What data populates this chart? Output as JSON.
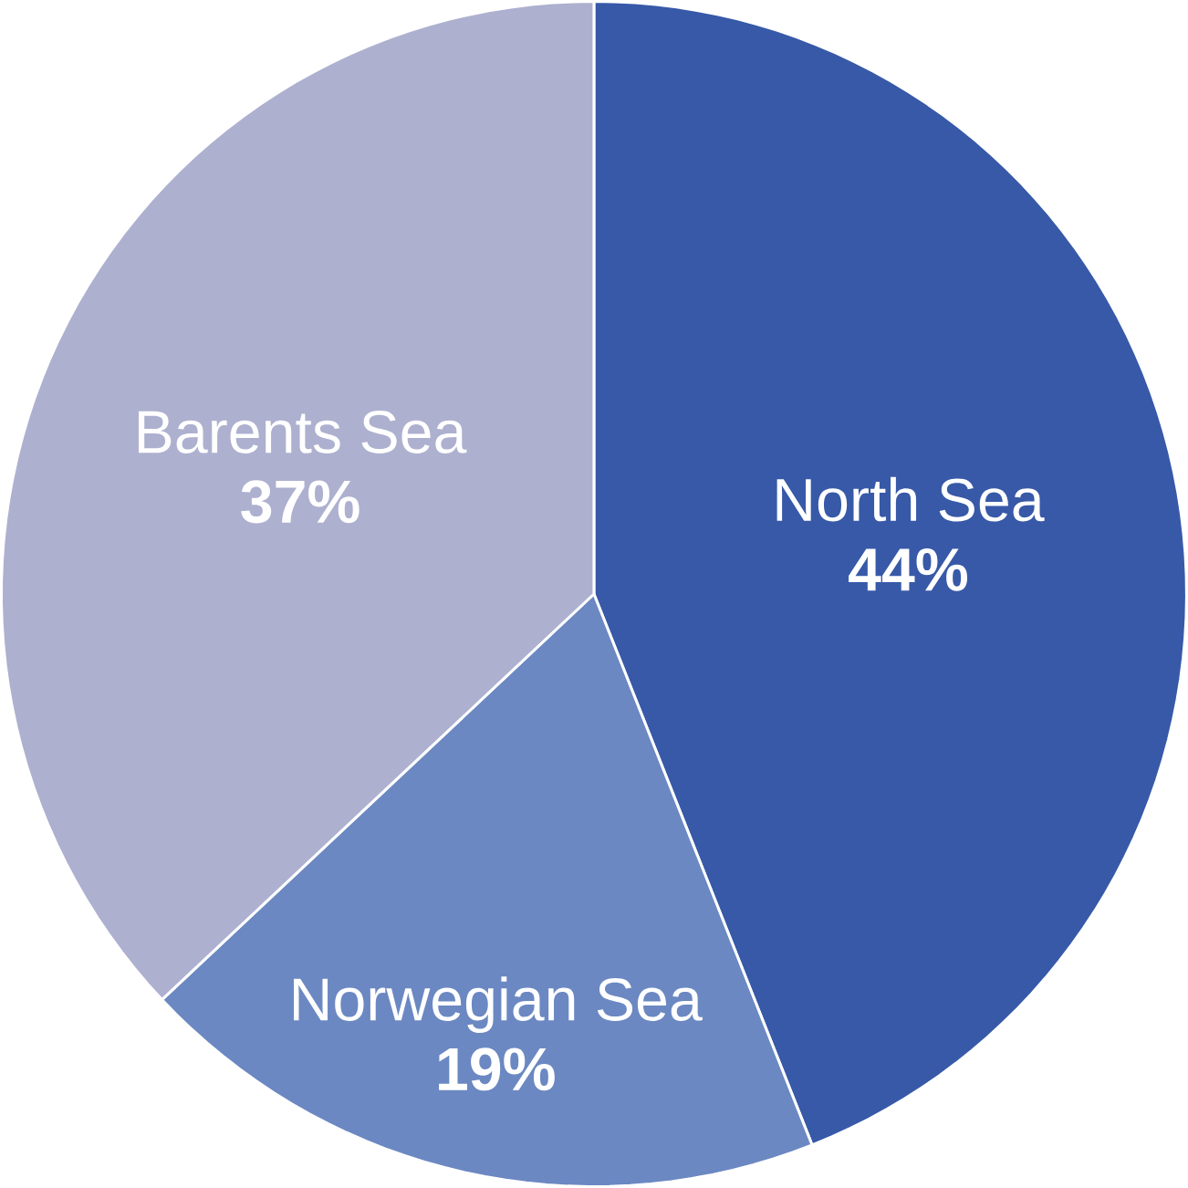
{
  "chart_data": {
    "type": "pie",
    "categories": [
      "North Sea",
      "Norwegian Sea",
      "Barents Sea"
    ],
    "values": [
      44,
      19,
      37
    ],
    "value_labels": [
      "44%",
      "19%",
      "37%"
    ],
    "colors": [
      "#3759a8",
      "#6b88c2",
      "#adb0cf"
    ]
  }
}
